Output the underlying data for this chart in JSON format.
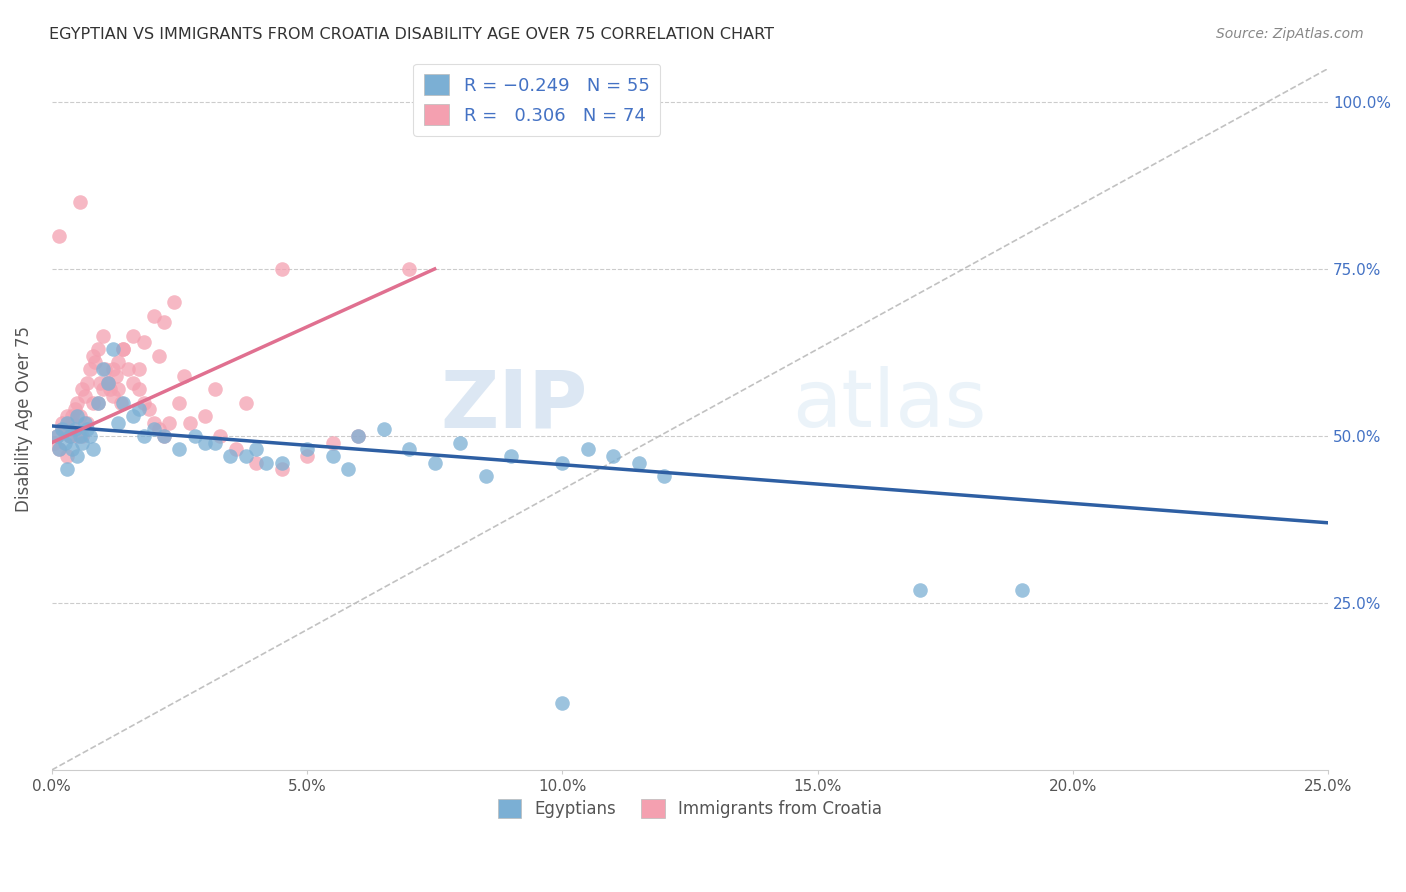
{
  "title": "EGYPTIAN VS IMMIGRANTS FROM CROATIA DISABILITY AGE OVER 75 CORRELATION CHART",
  "source": "Source: ZipAtlas.com",
  "ylabel": "Disability Age Over 75",
  "xlabel_vals": [
    0.0,
    5.0,
    10.0,
    15.0,
    20.0,
    25.0
  ],
  "ylabel_vals": [
    25.0,
    50.0,
    75.0,
    100.0
  ],
  "xmin": 0.0,
  "xmax": 25.0,
  "ymin": 0.0,
  "ymax": 105.0,
  "blue_color": "#7BAFD4",
  "pink_color": "#F4A0B0",
  "blue_line_color": "#2E5FA3",
  "pink_line_color": "#E07090",
  "blue_R": -0.249,
  "blue_N": 55,
  "pink_R": 0.306,
  "pink_N": 74,
  "legend_label_blue": "Egyptians",
  "legend_label_pink": "Immigrants from Croatia",
  "watermark_zip": "ZIP",
  "watermark_atlas": "atlas",
  "blue_scatter_x": [
    0.1,
    0.15,
    0.2,
    0.25,
    0.3,
    0.35,
    0.4,
    0.45,
    0.5,
    0.55,
    0.6,
    0.65,
    0.7,
    0.75,
    0.8,
    0.9,
    1.0,
    1.1,
    1.2,
    1.4,
    1.6,
    1.8,
    2.0,
    2.2,
    2.5,
    3.0,
    3.5,
    4.0,
    4.5,
    5.0,
    5.5,
    6.0,
    6.5,
    7.0,
    7.5,
    8.0,
    8.5,
    9.0,
    10.0,
    10.5,
    11.0,
    11.5,
    12.0,
    1.3,
    1.7,
    2.8,
    3.2,
    3.8,
    4.2,
    5.8,
    17.0,
    19.0,
    10.0,
    0.3,
    0.5
  ],
  "blue_scatter_y": [
    50,
    48,
    51,
    49,
    52,
    50,
    48,
    51,
    53,
    50,
    49,
    52,
    51,
    50,
    48,
    55,
    60,
    58,
    63,
    55,
    53,
    50,
    51,
    50,
    48,
    49,
    47,
    48,
    46,
    48,
    47,
    50,
    51,
    48,
    46,
    49,
    44,
    47,
    46,
    48,
    47,
    46,
    44,
    52,
    54,
    50,
    49,
    47,
    46,
    45,
    27,
    27,
    10,
    45,
    47
  ],
  "pink_scatter_x": [
    0.05,
    0.1,
    0.15,
    0.2,
    0.25,
    0.3,
    0.35,
    0.4,
    0.45,
    0.5,
    0.55,
    0.6,
    0.65,
    0.7,
    0.75,
    0.8,
    0.85,
    0.9,
    0.95,
    1.0,
    1.05,
    1.1,
    1.15,
    1.2,
    1.25,
    1.3,
    1.35,
    1.4,
    1.5,
    1.6,
    1.7,
    1.8,
    1.9,
    2.0,
    2.1,
    2.2,
    2.3,
    2.5,
    2.7,
    3.0,
    3.3,
    3.6,
    4.0,
    4.5,
    5.0,
    5.5,
    6.0,
    7.0,
    0.2,
    0.4,
    0.6,
    0.8,
    1.0,
    1.2,
    1.4,
    1.6,
    1.8,
    2.0,
    2.2,
    2.4,
    0.3,
    0.5,
    0.7,
    0.9,
    1.1,
    1.3,
    1.7,
    2.1,
    2.6,
    3.2,
    3.8,
    0.15,
    0.55,
    4.5
  ],
  "pink_scatter_y": [
    49,
    50,
    48,
    52,
    51,
    53,
    50,
    52,
    54,
    55,
    53,
    57,
    56,
    58,
    60,
    62,
    61,
    63,
    58,
    65,
    60,
    58,
    57,
    56,
    59,
    61,
    55,
    63,
    60,
    58,
    57,
    55,
    54,
    52,
    51,
    50,
    52,
    55,
    52,
    53,
    50,
    48,
    46,
    45,
    47,
    49,
    50,
    75,
    51,
    53,
    50,
    55,
    57,
    60,
    63,
    65,
    64,
    68,
    67,
    70,
    47,
    50,
    52,
    55,
    58,
    57,
    60,
    62,
    59,
    57,
    55,
    80,
    85,
    75
  ]
}
